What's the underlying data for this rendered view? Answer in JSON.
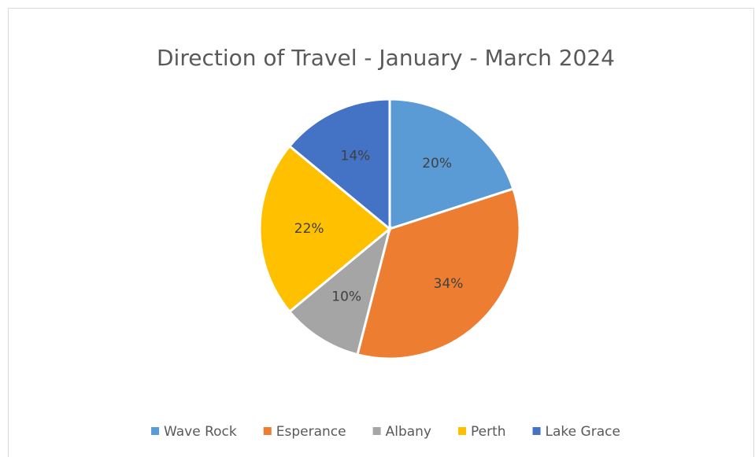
{
  "chart_data": {
    "type": "pie",
    "title": "Direction of Travel - January - March 2024",
    "categories": [
      "Wave Rock",
      "Esperance",
      "Albany",
      "Perth",
      "Lake Grace"
    ],
    "values": [
      20,
      34,
      10,
      22,
      14
    ],
    "value_labels": [
      "20%",
      "34%",
      "10%",
      "22%",
      "14%"
    ],
    "colors": [
      "#5b9bd5",
      "#ed7d31",
      "#a5a5a5",
      "#ffc000",
      "#4472c4"
    ],
    "legend": "bottom"
  }
}
